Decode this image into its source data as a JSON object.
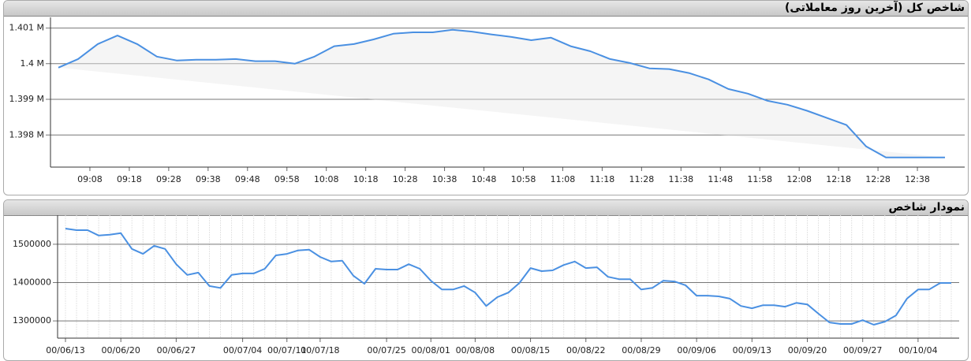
{
  "chart_data": [
    {
      "type": "line",
      "title": "شاخص کل (آخرین روز معاملاتی)",
      "color": "#4a90e2",
      "x": [
        "09:00",
        "09:05",
        "09:10",
        "09:15",
        "09:20",
        "09:25",
        "09:30",
        "09:35",
        "09:40",
        "09:45",
        "09:50",
        "09:55",
        "10:00",
        "10:05",
        "10:10",
        "10:15",
        "10:20",
        "10:25",
        "10:30",
        "10:35",
        "10:40",
        "10:45",
        "10:50",
        "10:55",
        "11:00",
        "11:05",
        "11:10",
        "11:15",
        "11:20",
        "11:25",
        "11:30",
        "11:35",
        "11:40",
        "11:45",
        "11:50",
        "11:55",
        "12:00",
        "12:05",
        "12:10",
        "12:15",
        "12:20",
        "12:25",
        "12:30",
        "12:35",
        "12:40",
        "12:45"
      ],
      "values": [
        1399890,
        1400130,
        1400550,
        1400790,
        1400550,
        1400200,
        1400090,
        1400110,
        1400110,
        1400130,
        1400070,
        1400070,
        1400000,
        1400200,
        1400490,
        1400550,
        1400680,
        1400840,
        1400880,
        1400880,
        1400950,
        1400900,
        1400820,
        1400750,
        1400660,
        1400730,
        1400490,
        1400350,
        1400130,
        1400020,
        1399870,
        1399850,
        1399740,
        1399560,
        1399290,
        1399160,
        1398960,
        1398850,
        1398680,
        1398480,
        1398280,
        1397680,
        1397370,
        1397370,
        1397370,
        1397370
      ],
      "xlim": [
        "08:58",
        "12:50"
      ],
      "xticks": [
        "09:08",
        "09:18",
        "09:28",
        "09:38",
        "09:48",
        "09:58",
        "10:08",
        "10:18",
        "10:28",
        "10:38",
        "10:48",
        "10:58",
        "11:08",
        "11:18",
        "11:28",
        "11:38",
        "11:48",
        "11:58",
        "12:08",
        "12:18",
        "12:28",
        "12:38"
      ],
      "ylim": [
        1397100,
        1401300
      ],
      "yticks": [
        {
          "value": 1398000,
          "label": "1.398 M"
        },
        {
          "value": 1399000,
          "label": "1.399 M"
        },
        {
          "value": 1400000,
          "label": "1.4 M"
        },
        {
          "value": 1401000,
          "label": "1.401 M"
        }
      ],
      "grid": true
    },
    {
      "type": "line",
      "title": "نمودار شاخص",
      "color": "#4a90e2",
      "categories": [
        "00/06/13",
        null,
        null,
        null,
        null,
        "00/06/20",
        null,
        null,
        null,
        null,
        "00/06/27",
        null,
        null,
        null,
        null,
        null,
        "00/07/04",
        null,
        null,
        null,
        "00/07/11",
        null,
        null,
        "00/07/18",
        null,
        null,
        null,
        null,
        null,
        "00/07/25",
        null,
        null,
        null,
        "00/08/01",
        null,
        null,
        null,
        "00/08/08",
        null,
        null,
        null,
        null,
        "00/08/15",
        null,
        null,
        null,
        null,
        "00/08/22",
        null,
        null,
        null,
        null,
        "00/08/29",
        null,
        null,
        null,
        null,
        "00/09/06",
        null,
        null,
        null,
        null,
        "00/09/13",
        null,
        null,
        null,
        null,
        "00/09/20",
        null,
        null,
        null,
        null,
        "00/09/27",
        null,
        null,
        null,
        null,
        "00/10/04",
        null,
        null,
        null
      ],
      "values": [
        1541000,
        1537000,
        1537000,
        1523000,
        1525000,
        1529000,
        1488000,
        1475000,
        1496000,
        1488000,
        1448000,
        1420000,
        1426000,
        1391000,
        1386000,
        1420000,
        1424000,
        1424000,
        1436000,
        1471000,
        1475000,
        1484000,
        1486000,
        1467000,
        1455000,
        1457000,
        1418000,
        1397000,
        1436000,
        1434000,
        1434000,
        1448000,
        1436000,
        1405000,
        1382000,
        1382000,
        1391000,
        1374000,
        1339000,
        1362000,
        1374000,
        1399000,
        1438000,
        1430000,
        1432000,
        1446000,
        1455000,
        1438000,
        1440000,
        1415000,
        1409000,
        1409000,
        1382000,
        1386000,
        1405000,
        1403000,
        1393000,
        1366000,
        1366000,
        1364000,
        1358000,
        1339000,
        1333000,
        1341000,
        1341000,
        1337000,
        1347000,
        1343000,
        1319000,
        1296000,
        1292000,
        1292000,
        1302000,
        1290000,
        1298000,
        1314000,
        1358000,
        1382000,
        1382000,
        1399000,
        1399000
      ],
      "ylim": [
        1255000,
        1576000
      ],
      "yticks": [
        1300000,
        1400000,
        1500000
      ],
      "grid": true
    }
  ]
}
